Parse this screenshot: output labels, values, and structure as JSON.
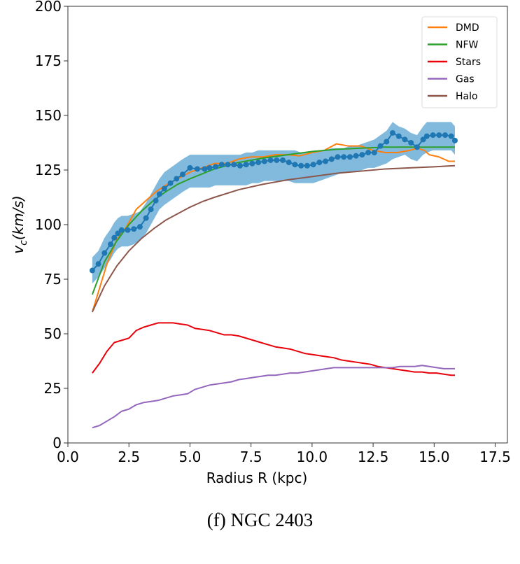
{
  "caption": "(f) NGC 2403",
  "chart_data": {
    "type": "line",
    "title": "",
    "xlabel": "Radius R (kpc)",
    "ylabel_main": "v",
    "ylabel_sub": "c",
    "ylabel_units": "(km/s)",
    "xlim": [
      0,
      18.0
    ],
    "ylim": [
      0,
      200
    ],
    "xticks": [
      0.0,
      2.5,
      5.0,
      7.5,
      10.0,
      12.5,
      15.0,
      17.5
    ],
    "xtick_labels": [
      "0.0",
      "2.5",
      "5.0",
      "7.5",
      "10.0",
      "12.5",
      "15.0",
      "17.5"
    ],
    "yticks": [
      0,
      25,
      50,
      75,
      100,
      125,
      150,
      175,
      200
    ],
    "ytick_labels": [
      "0",
      "25",
      "50",
      "75",
      "100",
      "125",
      "150",
      "175",
      "200"
    ],
    "grid": false,
    "legend_position": "top-right",
    "legend": [
      {
        "name": "DMD",
        "color": "#ff7f0e"
      },
      {
        "name": "NFW",
        "color": "#2ca02c"
      },
      {
        "name": "Stars",
        "color": "#e8000b"
      },
      {
        "name": "Gas",
        "color": "#9467bd"
      },
      {
        "name": "Halo",
        "color": "#8c564b"
      }
    ],
    "observed": {
      "name": "Observed",
      "color": "#1f77b4",
      "band_color": "#6baed6",
      "x": [
        1.0,
        1.25,
        1.5,
        1.75,
        1.9,
        2.05,
        2.2,
        2.45,
        2.7,
        2.95,
        3.2,
        3.4,
        3.6,
        3.75,
        3.95,
        4.2,
        4.45,
        4.7,
        5.0,
        5.3,
        5.6,
        5.8,
        6.05,
        6.3,
        6.55,
        6.8,
        7.05,
        7.3,
        7.55,
        7.8,
        8.05,
        8.3,
        8.55,
        8.8,
        9.05,
        9.3,
        9.55,
        9.8,
        10.05,
        10.3,
        10.55,
        10.8,
        11.05,
        11.3,
        11.55,
        11.8,
        12.05,
        12.3,
        12.55,
        12.8,
        13.05,
        13.3,
        13.55,
        13.8,
        14.05,
        14.3,
        14.55,
        14.7,
        14.95,
        15.2,
        15.45,
        15.7,
        15.85
      ],
      "y": [
        79,
        82,
        87,
        91,
        94,
        96,
        97.5,
        97.5,
        98,
        99,
        103,
        107,
        111,
        114,
        116.5,
        119,
        121,
        123,
        126,
        125.5,
        125.5,
        126,
        126.5,
        127.5,
        127.5,
        127.5,
        127,
        127.5,
        128,
        128.5,
        129,
        129.5,
        129.5,
        129.5,
        128.5,
        127.5,
        127,
        127,
        127.5,
        128.5,
        129,
        130,
        131,
        131,
        131,
        131.5,
        132,
        133,
        133,
        136,
        138,
        142,
        140.5,
        139,
        137.5,
        135.5,
        139,
        140.5,
        141,
        141,
        141,
        140.5,
        138.5
      ],
      "band_low": [
        73,
        76,
        80,
        84,
        87,
        89,
        90,
        90,
        91,
        93,
        96,
        100,
        104,
        107,
        109,
        111,
        113,
        115,
        117,
        117,
        117,
        117,
        118,
        118,
        118,
        118,
        118,
        118,
        119,
        119,
        120,
        120,
        120,
        120,
        120,
        119,
        119,
        119,
        119,
        120,
        121,
        122,
        123,
        124,
        124,
        124,
        125,
        126,
        126,
        127,
        128,
        130,
        131,
        132,
        130,
        129,
        132,
        133,
        134,
        134,
        134,
        134,
        132
      ],
      "band_high": [
        85,
        88,
        94,
        98,
        101,
        103,
        104,
        104,
        105,
        106,
        110,
        114,
        118,
        121,
        124,
        126,
        128,
        130,
        132,
        132,
        132,
        132,
        132,
        132,
        132,
        132,
        132,
        133,
        133,
        134,
        134,
        134,
        134,
        134,
        134,
        134,
        133,
        133,
        133,
        134,
        134,
        135,
        135,
        135,
        136,
        136,
        137,
        138,
        139,
        141,
        143,
        147,
        145,
        144,
        142,
        141,
        145,
        147,
        147,
        147,
        147,
        147,
        145
      ]
    },
    "series": [
      {
        "name": "DMD",
        "color": "#ff7f0e",
        "x": [
          1.0,
          1.3,
          1.6,
          2.0,
          2.4,
          2.8,
          3.2,
          3.6,
          4.0,
          4.5,
          5.0,
          5.5,
          6.0,
          6.5,
          7.0,
          7.5,
          8.0,
          8.5,
          9.0,
          9.5,
          10.0,
          10.5,
          11.0,
          11.5,
          12.0,
          12.5,
          13.0,
          13.5,
          14.0,
          14.3,
          14.6,
          14.8,
          15.2,
          15.6,
          15.85
        ],
        "y": [
          60,
          71,
          82,
          93,
          99,
          107,
          111,
          115,
          118,
          121,
          124,
          126,
          128,
          128,
          130,
          131,
          131,
          132,
          132,
          131.5,
          133,
          134,
          137,
          136,
          136,
          134,
          133,
          133,
          134,
          135,
          134,
          132,
          131,
          129,
          129
        ]
      },
      {
        "name": "NFW",
        "color": "#2ca02c",
        "x": [
          1.0,
          1.5,
          2.0,
          2.5,
          3.0,
          3.5,
          4.0,
          4.5,
          5.0,
          6.0,
          7.0,
          8.0,
          9.0,
          10.0,
          11.0,
          12.0,
          13.0,
          14.0,
          15.0,
          15.85
        ],
        "y": [
          68,
          83,
          92.5,
          100,
          106,
          111,
          115,
          118.5,
          121,
          125.5,
          128.5,
          130.5,
          132,
          133.5,
          134.5,
          135,
          135.5,
          135.5,
          135.5,
          135.5
        ]
      },
      {
        "name": "Stars",
        "color": "#e8000b",
        "x": [
          1.0,
          1.3,
          1.6,
          1.9,
          2.2,
          2.5,
          2.8,
          3.1,
          3.4,
          3.7,
          4.0,
          4.3,
          4.6,
          4.9,
          5.2,
          5.5,
          5.8,
          6.1,
          6.4,
          6.7,
          7.0,
          7.3,
          7.6,
          7.9,
          8.2,
          8.5,
          8.8,
          9.1,
          9.4,
          9.7,
          10.0,
          10.3,
          10.6,
          10.9,
          11.2,
          11.5,
          11.8,
          12.1,
          12.4,
          12.7,
          13.0,
          13.3,
          13.6,
          13.9,
          14.2,
          14.5,
          14.8,
          15.1,
          15.4,
          15.7,
          15.85
        ],
        "y": [
          32,
          36.5,
          42,
          46,
          47,
          48,
          51.5,
          53,
          54,
          55,
          55,
          55,
          54.5,
          54,
          52.5,
          52,
          51.5,
          50.5,
          49.5,
          49.5,
          49,
          48,
          47,
          46,
          45,
          44,
          43.5,
          43,
          42,
          41,
          40.5,
          40,
          39.5,
          39,
          38,
          37.5,
          37,
          36.5,
          36,
          35,
          34.5,
          34,
          33.5,
          33,
          32.5,
          32.5,
          32,
          32,
          31.5,
          31,
          31
        ]
      },
      {
        "name": "Gas",
        "color": "#9467bd",
        "x": [
          1.0,
          1.3,
          1.6,
          1.9,
          2.2,
          2.5,
          2.8,
          3.1,
          3.4,
          3.7,
          4.0,
          4.3,
          4.6,
          4.9,
          5.2,
          5.5,
          5.8,
          6.1,
          6.4,
          6.7,
          7.0,
          7.3,
          7.6,
          7.9,
          8.2,
          8.5,
          8.8,
          9.1,
          9.4,
          9.7,
          10.0,
          10.3,
          10.6,
          10.9,
          11.2,
          11.5,
          11.8,
          12.1,
          12.4,
          12.7,
          13.0,
          13.3,
          13.6,
          13.9,
          14.2,
          14.5,
          14.8,
          15.1,
          15.4,
          15.7,
          15.85
        ],
        "y": [
          7,
          8,
          10,
          12,
          14.5,
          15.5,
          17.5,
          18.5,
          19,
          19.5,
          20.5,
          21.5,
          22,
          22.5,
          24.5,
          25.5,
          26.5,
          27,
          27.5,
          28,
          29,
          29.5,
          30,
          30.5,
          31,
          31,
          31.5,
          32,
          32,
          32.5,
          33,
          33.5,
          34,
          34.5,
          34.5,
          34.5,
          34.5,
          34.5,
          34.5,
          34.5,
          34.5,
          34.5,
          35,
          35,
          35,
          35.5,
          35,
          34.5,
          34,
          34,
          34
        ]
      },
      {
        "name": "Halo",
        "color": "#8c564b",
        "x": [
          1.0,
          1.5,
          2.0,
          2.5,
          3.0,
          3.5,
          4.0,
          4.5,
          5.0,
          5.5,
          6.0,
          7.0,
          8.0,
          9.0,
          10.0,
          11.0,
          12.0,
          13.0,
          14.0,
          15.0,
          15.85
        ],
        "y": [
          60,
          72,
          81,
          88,
          93.5,
          98,
          102,
          105,
          108,
          110.5,
          112.5,
          116,
          118.5,
          120.5,
          122,
          123.5,
          124.5,
          125.5,
          126,
          126.5,
          127
        ]
      }
    ]
  }
}
